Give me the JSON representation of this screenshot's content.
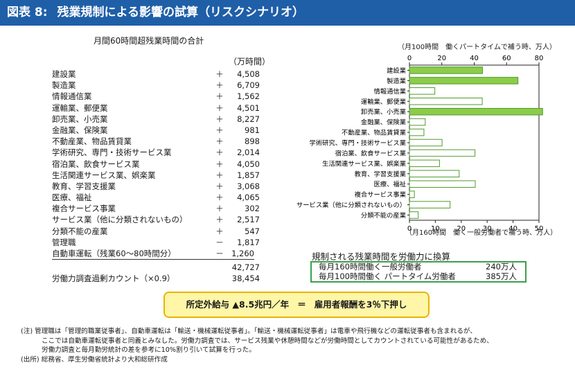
{
  "title": {
    "figure": "図表 8:",
    "text": "残業規制による影響の試算（リスクシナリオ）"
  },
  "table": {
    "subtitle": "月間60時間超残業時間の合計",
    "unit": "（万時間）",
    "rows": [
      {
        "label": "建設業",
        "sign": "＋",
        "value": "4,508"
      },
      {
        "label": "製造業",
        "sign": "＋",
        "value": "6,709"
      },
      {
        "label": "情報通信業",
        "sign": "＋",
        "value": "1,562"
      },
      {
        "label": "運輸業、郵便業",
        "sign": "＋",
        "value": "4,501"
      },
      {
        "label": "卸売業、小売業",
        "sign": "＋",
        "value": "8,227"
      },
      {
        "label": "金融業、保険業",
        "sign": "＋",
        "value": "981"
      },
      {
        "label": "不動産業、物品賃貸業",
        "sign": "＋",
        "value": "898"
      },
      {
        "label": "学術研究、専門・技術サービス業",
        "sign": "＋",
        "value": "2,014"
      },
      {
        "label": "宿泊業、飲食サービス業",
        "sign": "＋",
        "value": "4,050"
      },
      {
        "label": "生活関連サービス業、娯楽業",
        "sign": "＋",
        "value": "1,857"
      },
      {
        "label": "教育、学習支援業",
        "sign": "＋",
        "value": "3,068"
      },
      {
        "label": "医療、福祉",
        "sign": "＋",
        "value": "4,065"
      },
      {
        "label": "複合サービス事業",
        "sign": "＋",
        "value": "302"
      },
      {
        "label": "サービス業（他に分類されないもの）",
        "sign": "＋",
        "value": "2,517"
      },
      {
        "label": "分類不能の産業",
        "sign": "＋",
        "value": "547"
      },
      {
        "label": "管理職",
        "sign": "－",
        "value": "1,817"
      },
      {
        "label": "自動車運転（残業60～80時間分）",
        "sign": "－",
        "value": "1,260"
      }
    ],
    "total": "42,727",
    "adjusted_label": "労働力調査過剰カウント（×0.9）",
    "adjusted_value": "38,454"
  },
  "chart_data": {
    "type": "bar",
    "orientation": "horizontal",
    "top_axis_label": "（月100時間　働くパートタイムで補う時、万人）",
    "bottom_axis_label": "（月160時間　働く一般労働者で補う時、万人）",
    "top_ticks": [
      "0",
      "20",
      "40",
      "60",
      "80"
    ],
    "bottom_ticks": [
      "0",
      "10",
      "20",
      "30",
      "40",
      "50"
    ],
    "top_xlim": [
      0,
      80
    ],
    "bottom_xlim": [
      0,
      50
    ],
    "categories": [
      "建設業",
      "製造業",
      "情報通信業",
      "運輸業、郵便業",
      "卸売業、小売業",
      "金融業、保険業",
      "不動産業、物品賃貸業",
      "学術研究、専門・技術サービス業",
      "宿泊業、飲食サービス業",
      "生活関連サービス業、娯楽業",
      "教育、学習支援業",
      "医療、福祉",
      "複合サービス事業",
      "サービス業（他に分類されないもの）",
      "分類不能の産業"
    ],
    "values_general_workers": [
      28.2,
      41.9,
      9.8,
      28.1,
      51.4,
      6.1,
      5.6,
      12.6,
      25.3,
      11.6,
      19.2,
      25.4,
      1.9,
      15.7,
      3.4
    ],
    "colors": [
      "#8ccc4a",
      "#8ccc4a",
      "#ffffff",
      "#ffffff",
      "#8ccc4a",
      "#ffffff",
      "#ffffff",
      "#ffffff",
      "#ffffff",
      "#ffffff",
      "#ffffff",
      "#ffffff",
      "#ffffff",
      "#ffffff",
      "#ffffff"
    ],
    "bar_stroke": "#4f9a2a"
  },
  "conversion": {
    "title": "規制される残業時間を労働力に換算",
    "rows": [
      {
        "label": "毎月160時間働く一般労働者",
        "value": "240万人"
      },
      {
        "label": "毎月100時間働く パートタイム労働者",
        "value": "385万人"
      }
    ]
  },
  "highlight": {
    "part1": "所定外給与 ▲8.5兆円／年",
    "eq": "＝",
    "part2": "雇用者報酬を3％下押し"
  },
  "notes": {
    "line1": "(注) 管理職は「管理的職業従事者」、自動車運転は「輸送・機械運転従事者」。「輸送・機械運転従事者」は電車や飛行機などの運転従事者も含まれるが、",
    "line2": "ここでは自動車運転従事者と同義とみなした。労働力調査では、サービス残業や休憩時間などが労働時間としてカウントされている可能性があるため、",
    "line3": "労働力調査と毎月勤労統計の差を参考に10%割り引いて試算を行った。",
    "line4": "(出所) 総務省、厚生労働省統計より大和総研作成"
  }
}
